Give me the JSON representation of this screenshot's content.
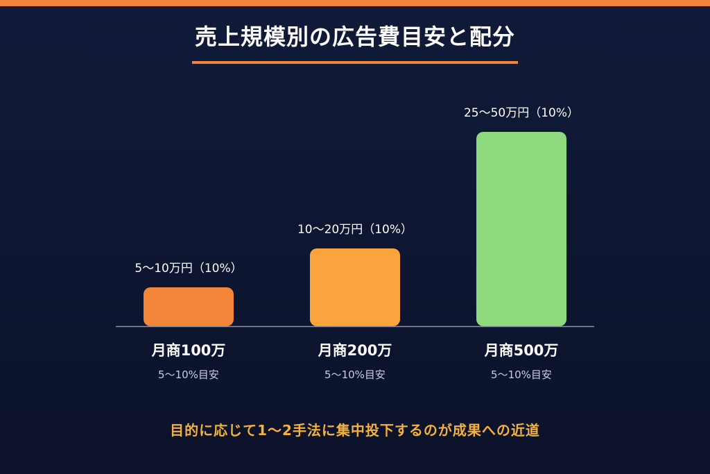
{
  "title": "売上規模別の広告費目安と配分",
  "footer": "目的に応じて1〜2手法に集中投下するのが成果への近道",
  "colors": {
    "accent": "#f0843a",
    "footer_text": "#f3b23f",
    "baseline": "#8a93ad"
  },
  "chart_data": {
    "type": "bar",
    "categories": [
      "月商100万",
      "月商200万",
      "月商500万"
    ],
    "sublabels": [
      "5〜10%目安",
      "5〜10%目安",
      "5〜10%目安"
    ],
    "data_labels": [
      "5〜10万円（10%）",
      "10〜20万円（10%）",
      "25〜50万円（10%）"
    ],
    "values": [
      10,
      20,
      50
    ],
    "unit": "万円",
    "ylim": [
      0,
      50
    ],
    "bar_colors": [
      "#f28537",
      "#fba33c",
      "#8edb7e"
    ],
    "grid": false,
    "legend": "none"
  }
}
